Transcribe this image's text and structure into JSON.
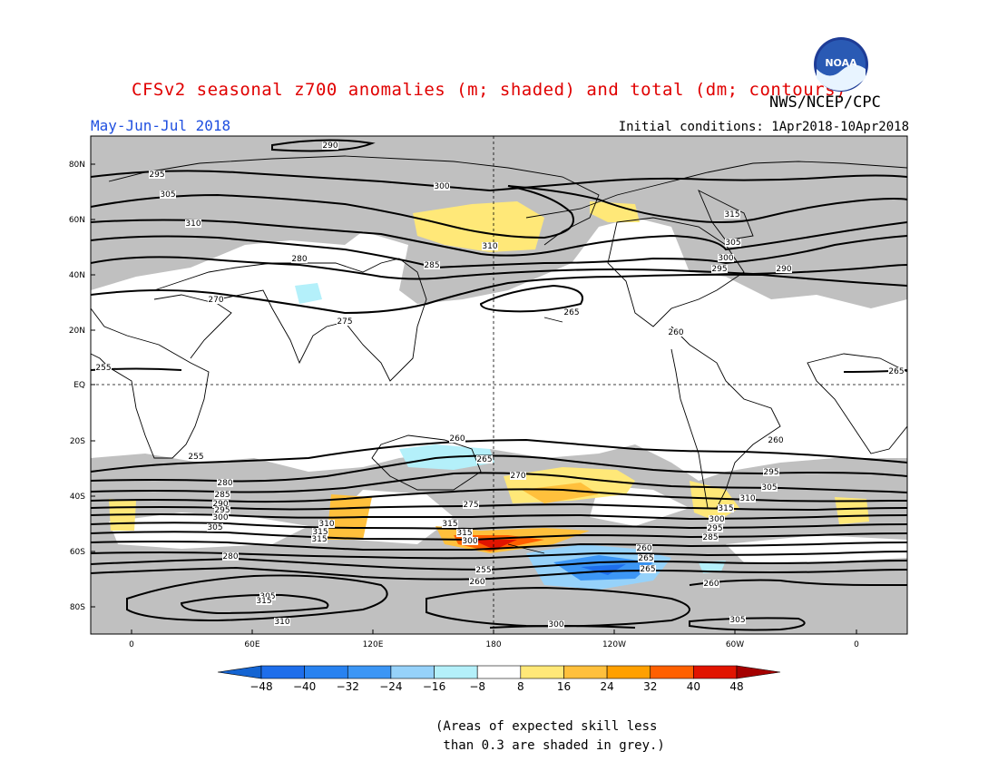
{
  "title": "CFSv2 seasonal z700 anomalies (m; shaded) and total (dm; contours)",
  "agency": "NWS/NCEP/CPC",
  "logo_text": "NOAA",
  "season": "May-Jun-Jul 2018",
  "initial_conditions": "Initial conditions: 1Apr2018-10Apr2018",
  "lat_labels": [
    "80N",
    "60N",
    "40N",
    "20N",
    "EQ",
    "20S",
    "40S",
    "60S",
    "80S"
  ],
  "lon_labels": [
    "0",
    "60E",
    "120E",
    "180",
    "120W",
    "60W",
    "0"
  ],
  "contour_labels": [
    "290",
    "295",
    "300",
    "305",
    "310",
    "315",
    "310",
    "305",
    "300",
    "295",
    "290",
    "285",
    "280",
    "275",
    "270",
    "265",
    "260",
    "255",
    "265",
    "260",
    "255",
    "260",
    "265",
    "270",
    "275",
    "280",
    "285",
    "290",
    "295",
    "300",
    "305",
    "310",
    "315",
    "315",
    "315",
    "315",
    "300",
    "295",
    "305",
    "310",
    "315",
    "300",
    "295",
    "285",
    "280",
    "260",
    "255",
    "260",
    "265",
    "265",
    "260",
    "305",
    "315",
    "310",
    "300",
    "305",
    "310",
    "315",
    "315",
    "290",
    "285",
    "280",
    "275",
    "270",
    "265",
    "260"
  ],
  "colorbar": {
    "ticks": [
      "-48",
      "-40",
      "-32",
      "-24",
      "-16",
      "-8",
      "8",
      "16",
      "24",
      "32",
      "40",
      "48"
    ],
    "colors": [
      "#1464d2",
      "#1e6eeb",
      "#2882f0",
      "#3c96f5",
      "#96d2fa",
      "#b4f0fa",
      "#ffffff",
      "#ffe878",
      "#ffc03c",
      "#ffa000",
      "#ff6000",
      "#e11400",
      "#a50000"
    ]
  },
  "grey_note": "(Areas of expected skill less\n than 0.3 are shaded in grey.)"
}
